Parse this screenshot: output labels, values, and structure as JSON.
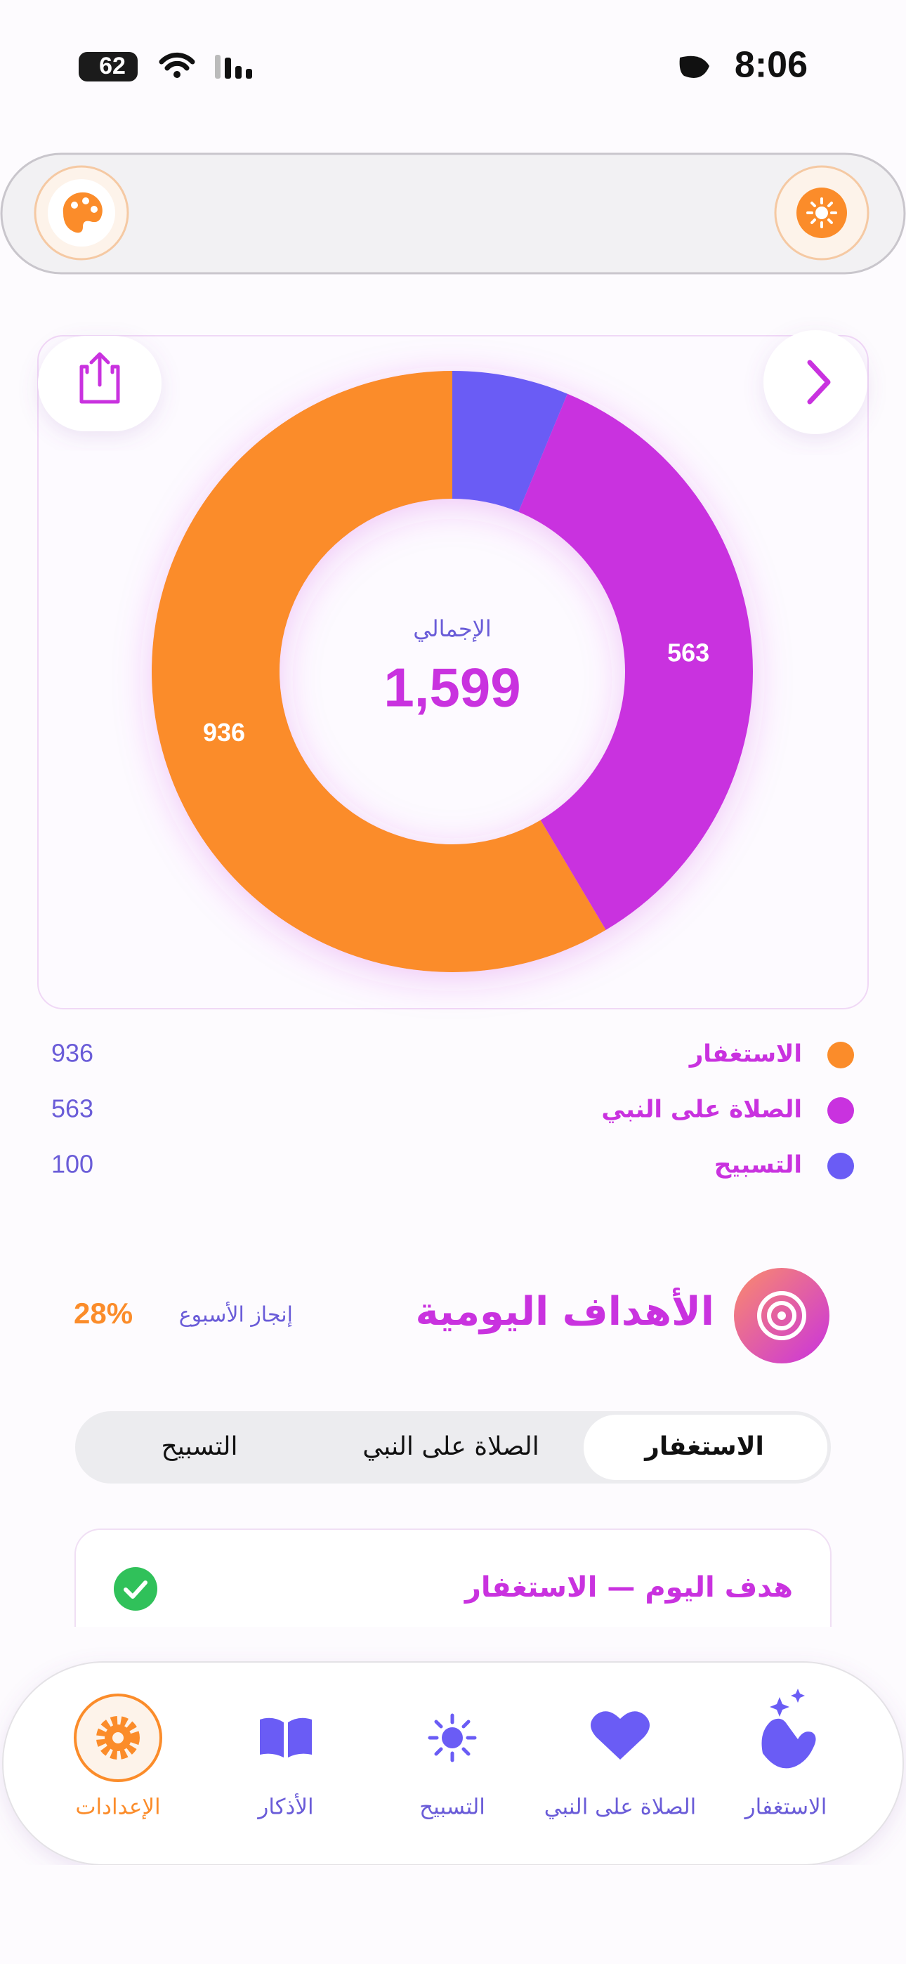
{
  "status_bar": {
    "battery": "62",
    "time": "8:06"
  },
  "chart_data": {
    "type": "donut",
    "center_title": "الإجمالي",
    "total": {
      "value": 1599,
      "label": "1,599"
    },
    "categories": [
      "الاستغفار",
      "الصلاة على النبي",
      "التسبيح"
    ],
    "values": [
      936,
      563,
      100
    ],
    "colors": [
      "#fb8c2a",
      "#c932df",
      "#6a5cf5"
    ]
  },
  "goals": {
    "title": "الأهداف اليومية",
    "week_label": "إنجاز الأسبوع",
    "week_progress": "28%"
  },
  "tabs": [
    "الاستغفار",
    "الصلاة على النبي",
    "التسبيح"
  ],
  "goal_card": {
    "title": "هدف اليوم — الاستغفار"
  },
  "nav": [
    "الاستغفار",
    "الصلاة على النبي",
    "التسبيح",
    "الأذكار",
    "الإعدادات"
  ]
}
